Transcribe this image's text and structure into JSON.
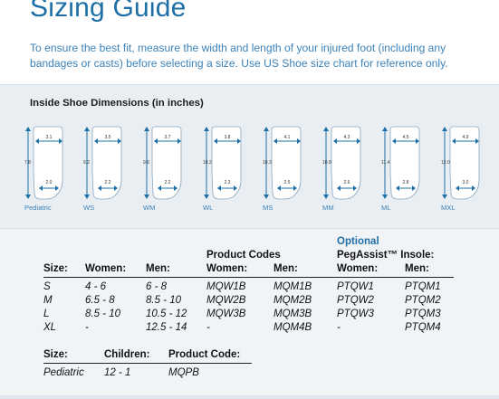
{
  "header": {
    "title": "Sizing Guide",
    "intro": "To ensure the best fit, measure the width and length of your injured foot (including any bandages or casts) before selecting a size. Use US Shoe size chart for reference only."
  },
  "dimensions": {
    "title": "Inside Shoe Dimensions (in inches)",
    "shoes": [
      {
        "label": "Pediatric",
        "length": "7.8",
        "top_width": "3.1",
        "bottom_width": "2.0"
      },
      {
        "label": "WS",
        "length": "9.2",
        "top_width": "3.5",
        "bottom_width": "2.2"
      },
      {
        "label": "WM",
        "length": "9.6",
        "top_width": "3.7",
        "bottom_width": "2.2"
      },
      {
        "label": "WL",
        "length": "10.2",
        "top_width": "3.8",
        "bottom_width": "2.3"
      },
      {
        "label": "MS",
        "length": "10.3",
        "top_width": "4.1",
        "bottom_width": "2.5"
      },
      {
        "label": "MM",
        "length": "10.8",
        "top_width": "4.3",
        "bottom_width": "2.6"
      },
      {
        "label": "ML",
        "length": "11.4",
        "top_width": "4.5",
        "bottom_width": "2.8"
      },
      {
        "label": "MXL",
        "length": "12.0",
        "top_width": "4.9",
        "bottom_width": "3.0"
      }
    ]
  },
  "codes": {
    "product_codes_title": "Product Codes",
    "optional_title": "Optional",
    "insole_title": "PegAssist™ Insole:",
    "headers": [
      "Size:",
      "Women:",
      "Men:",
      "Women:",
      "Men:",
      "Women:",
      "Men:"
    ],
    "rows": [
      [
        "S",
        "4 - 6",
        "6 - 8",
        "MQW1B",
        "MQM1B",
        "PTQW1",
        "PTQM1"
      ],
      [
        "M",
        "6.5 - 8",
        "8.5 - 10",
        "MQW2B",
        "MQM2B",
        "PTQW2",
        "PTQM2"
      ],
      [
        "L",
        "8.5 - 10",
        "10.5 - 12",
        "MQW3B",
        "MQM3B",
        "PTQW3",
        "PTQM3"
      ],
      [
        "XL",
        "-",
        "12.5 - 14",
        "-",
        "MQM4B",
        "-",
        "PTQM4"
      ]
    ]
  },
  "pediatric": {
    "headers": [
      "Size:",
      "Children:",
      "Product Code:"
    ],
    "row": [
      "Pediatric",
      "12 - 1",
      "MQPB"
    ]
  },
  "colors": {
    "accent": "#1d6fa6",
    "text_blue": "#3c82b8",
    "band": "#e9eef3"
  }
}
